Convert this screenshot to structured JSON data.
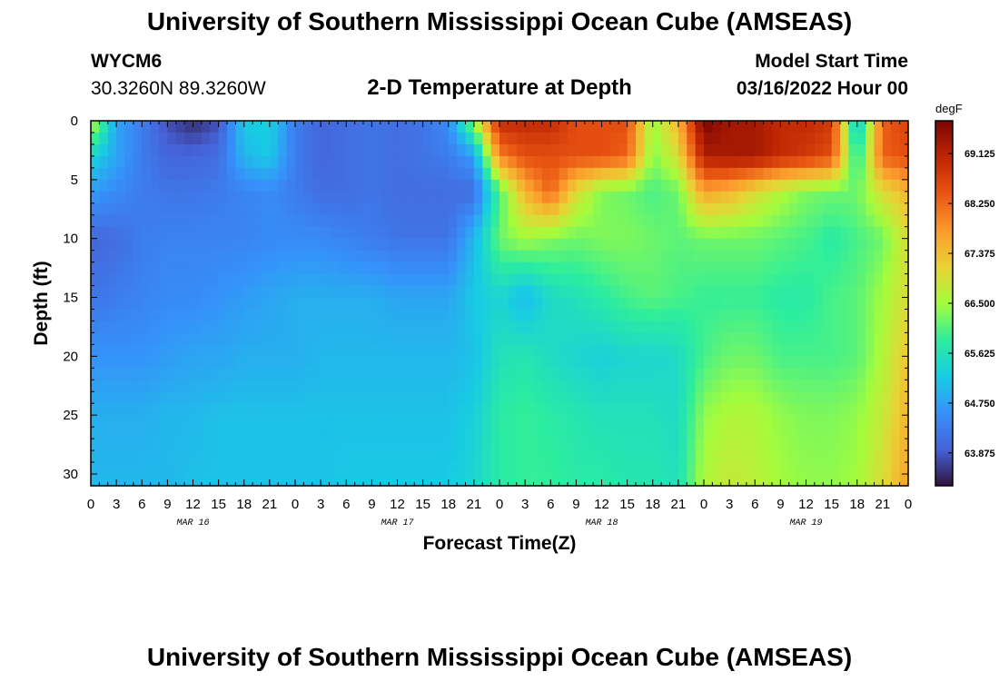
{
  "header": {
    "title": "University of Southern Mississippi Ocean Cube (AMSEAS)",
    "station_id": "WYCM6",
    "station_coords": "30.3260N  89.3260W",
    "subtitle": "2-D Temperature at Depth",
    "start_label": "Model Start Time",
    "start_value": "03/16/2022 Hour 00"
  },
  "footer": {
    "title": "University of Southern Mississippi Ocean Cube (AMSEAS)"
  },
  "chart_data": {
    "type": "heatmap",
    "title": "2-D Temperature at Depth",
    "xlabel": "Forecast Time(Z)",
    "ylabel": "Depth (ft)",
    "x_unit": "hours since model start",
    "xlim": [
      0,
      96
    ],
    "ylim": [
      0,
      31
    ],
    "y_inverted": true,
    "x_ticks": [
      0,
      3,
      6,
      9,
      12,
      15,
      18,
      21,
      24,
      27,
      30,
      33,
      36,
      39,
      42,
      45,
      48,
      51,
      54,
      57,
      60,
      63,
      66,
      69,
      72,
      75,
      78,
      81,
      84,
      87,
      90,
      93,
      96
    ],
    "x_tick_labels": [
      "0",
      "3",
      "6",
      "9",
      "12",
      "15",
      "18",
      "21",
      "0",
      "3",
      "6",
      "9",
      "12",
      "15",
      "18",
      "21",
      "0",
      "3",
      "6",
      "9",
      "12",
      "15",
      "18",
      "21",
      "0",
      "3",
      "6",
      "9",
      "12",
      "15",
      "18",
      "21",
      "0"
    ],
    "y_ticks": [
      0,
      5,
      10,
      15,
      20,
      25,
      30
    ],
    "y_tick_labels": [
      "0",
      "5",
      "10",
      "15",
      "20",
      "25",
      "30"
    ],
    "date_labels": [
      {
        "x": 12,
        "text": "MAR 16"
      },
      {
        "x": 36,
        "text": "MAR 17"
      },
      {
        "x": 60,
        "text": "MAR 18"
      },
      {
        "x": 84,
        "text": "MAR 19"
      }
    ],
    "colorbar": {
      "unit": "degF",
      "min": 63.3,
      "max": 69.7,
      "ticks": [
        63.875,
        64.75,
        65.625,
        66.5,
        67.375,
        68.25,
        69.125
      ],
      "tick_labels": [
        "63.875",
        "64.750",
        "65.625",
        "66.500",
        "67.375",
        "68.250",
        "69.125"
      ]
    },
    "field": {
      "depths": [
        0,
        3,
        6,
        10,
        15,
        20,
        25,
        31
      ],
      "times": [
        0,
        3,
        6,
        9,
        12,
        15,
        18,
        21,
        24,
        27,
        30,
        33,
        36,
        39,
        42,
        45,
        48,
        51,
        54,
        57,
        60,
        63,
        66,
        69,
        72,
        75,
        78,
        81,
        84,
        87,
        90,
        93,
        96
      ],
      "values": [
        [
          66.8,
          64.8,
          64.3,
          63.8,
          63.5,
          63.8,
          65.2,
          65.3,
          64.3,
          64.0,
          64.1,
          64.2,
          64.1,
          64.2,
          64.5,
          66.5,
          69.0,
          69.0,
          69.0,
          68.5,
          68.5,
          68.5,
          66.4,
          67.5,
          69.7,
          69.3,
          69.3,
          69.0,
          69.0,
          68.8,
          65.0,
          68.3,
          68.7
        ],
        [
          65.4,
          64.8,
          64.3,
          64.0,
          64.0,
          64.1,
          65.0,
          65.2,
          64.3,
          64.0,
          64.1,
          64.2,
          64.1,
          64.2,
          64.3,
          64.7,
          68.0,
          68.5,
          68.5,
          68.5,
          68.5,
          68.3,
          66.3,
          67.0,
          69.2,
          69.3,
          69.3,
          69.0,
          68.8,
          68.5,
          65.6,
          68.3,
          68.5
        ],
        [
          64.7,
          64.5,
          64.3,
          64.2,
          64.2,
          64.3,
          64.4,
          64.5,
          64.3,
          64.1,
          64.1,
          64.2,
          64.1,
          64.1,
          64.1,
          64.1,
          66.0,
          67.5,
          68.3,
          67.0,
          66.3,
          66.2,
          66.0,
          66.2,
          67.7,
          67.5,
          67.0,
          66.6,
          66.3,
          66.2,
          66.2,
          67.0,
          67.5
        ],
        [
          64.0,
          64.1,
          64.3,
          64.4,
          64.4,
          64.4,
          64.4,
          64.5,
          64.5,
          64.5,
          64.4,
          64.3,
          64.2,
          64.2,
          64.2,
          65.0,
          66.2,
          66.5,
          66.3,
          66.2,
          66.3,
          66.3,
          66.2,
          66.1,
          66.2,
          66.2,
          66.2,
          66.1,
          66.0,
          65.8,
          66.0,
          66.2,
          67.0
        ],
        [
          64.2,
          64.3,
          64.4,
          64.5,
          64.5,
          64.6,
          64.7,
          64.8,
          64.9,
          64.9,
          64.9,
          64.9,
          64.8,
          64.8,
          64.8,
          65.2,
          65.4,
          65.0,
          65.5,
          65.6,
          65.8,
          66.0,
          66.1,
          66.0,
          65.9,
          65.9,
          65.9,
          65.8,
          65.8,
          66.0,
          66.1,
          66.5,
          67.0
        ],
        [
          64.6,
          64.6,
          64.6,
          64.7,
          64.8,
          64.8,
          64.9,
          64.9,
          64.9,
          65.0,
          65.0,
          65.0,
          65.0,
          65.0,
          65.0,
          65.1,
          65.6,
          65.7,
          65.5,
          65.4,
          65.3,
          65.4,
          65.4,
          65.5,
          66.0,
          66.2,
          66.2,
          66.0,
          66.0,
          66.0,
          66.1,
          66.6,
          67.3
        ],
        [
          64.9,
          64.9,
          64.9,
          65.0,
          65.0,
          65.1,
          65.1,
          65.1,
          65.1,
          65.1,
          65.1,
          65.1,
          65.1,
          65.1,
          65.1,
          65.3,
          65.8,
          65.9,
          65.8,
          65.7,
          65.6,
          65.6,
          65.6,
          65.5,
          66.4,
          66.6,
          66.6,
          66.4,
          66.3,
          66.3,
          66.4,
          66.8,
          67.5
        ],
        [
          65.0,
          65.0,
          65.0,
          65.0,
          65.1,
          65.1,
          65.1,
          65.1,
          65.1,
          65.1,
          65.2,
          65.2,
          65.2,
          65.2,
          65.2,
          65.4,
          65.8,
          65.9,
          65.9,
          65.8,
          65.8,
          65.7,
          65.7,
          65.6,
          66.6,
          66.8,
          66.7,
          66.5,
          66.4,
          66.4,
          66.5,
          67.0,
          67.7
        ]
      ]
    }
  }
}
